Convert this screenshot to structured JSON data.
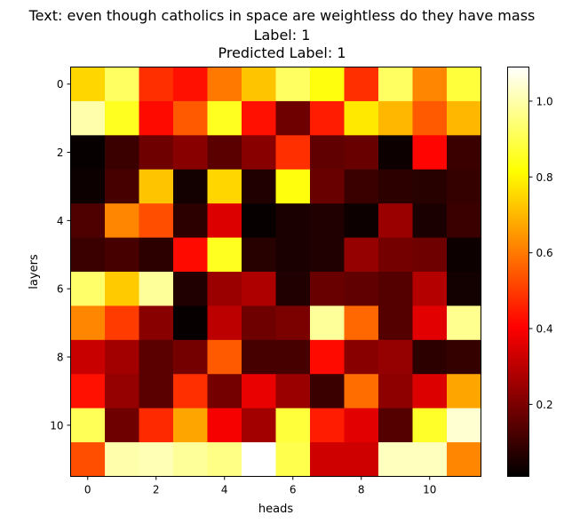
{
  "chart_data": {
    "type": "heatmap",
    "title_lines": [
      "Text: even though catholics in space are weightless do they have mass",
      "Label: 1",
      "Predicted Label: 1"
    ],
    "xlabel": "heads",
    "ylabel": "layers",
    "x_ticks": [
      0,
      2,
      4,
      6,
      8,
      10
    ],
    "y_ticks": [
      0,
      2,
      4,
      6,
      8,
      10
    ],
    "colorbar_ticks": [
      "0.2",
      "0.4",
      "0.6",
      "0.8",
      "1.0"
    ],
    "colormap": "hot",
    "vmin": 0.01,
    "vmax": 1.09,
    "values": [
      [
        0.75,
        0.92,
        0.48,
        0.43,
        0.6,
        0.72,
        0.92,
        0.83,
        0.48,
        0.92,
        0.62,
        0.88
      ],
      [
        1.0,
        0.85,
        0.42,
        0.55,
        0.85,
        0.43,
        0.18,
        0.45,
        0.78,
        0.7,
        0.55,
        0.7
      ],
      [
        0.02,
        0.1,
        0.18,
        0.22,
        0.15,
        0.22,
        0.48,
        0.16,
        0.17,
        0.03,
        0.41,
        0.1
      ],
      [
        0.03,
        0.12,
        0.72,
        0.04,
        0.75,
        0.06,
        0.83,
        0.17,
        0.1,
        0.08,
        0.07,
        0.09
      ],
      [
        0.13,
        0.62,
        0.53,
        0.08,
        0.35,
        0.02,
        0.05,
        0.06,
        0.03,
        0.25,
        0.05,
        0.1
      ],
      [
        0.1,
        0.12,
        0.08,
        0.42,
        0.85,
        0.07,
        0.05,
        0.06,
        0.24,
        0.19,
        0.18,
        0.03
      ],
      [
        0.93,
        0.73,
        0.98,
        0.06,
        0.25,
        0.28,
        0.06,
        0.17,
        0.16,
        0.14,
        0.29,
        0.04
      ],
      [
        0.62,
        0.5,
        0.22,
        0.02,
        0.3,
        0.18,
        0.2,
        0.98,
        0.57,
        0.14,
        0.36,
        0.97
      ],
      [
        0.32,
        0.26,
        0.15,
        0.19,
        0.55,
        0.12,
        0.12,
        0.42,
        0.22,
        0.24,
        0.08,
        0.09
      ],
      [
        0.43,
        0.24,
        0.15,
        0.48,
        0.19,
        0.37,
        0.25,
        0.1,
        0.58,
        0.23,
        0.35,
        0.67
      ],
      [
        0.91,
        0.18,
        0.47,
        0.67,
        0.39,
        0.26,
        0.88,
        0.45,
        0.36,
        0.14,
        0.86,
        1.04
      ],
      [
        0.53,
        1.0,
        1.01,
        0.98,
        0.96,
        1.09,
        0.9,
        0.33,
        0.33,
        1.02,
        1.02,
        0.62
      ]
    ]
  }
}
